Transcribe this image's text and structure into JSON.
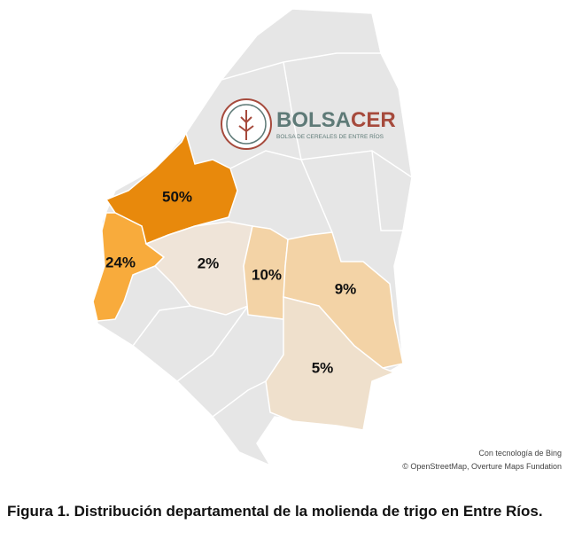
{
  "logo": {
    "name_part1": "BOLSA",
    "name_part2": "CER",
    "tagline": "BOLSA DE CEREALES DE ENTRE RÍOS"
  },
  "map": {
    "regions": [
      {
        "label": "50%",
        "color": "#e8890c"
      },
      {
        "label": "24%",
        "color": "#f8ab3c"
      },
      {
        "label": "2%",
        "color": "#efe4d8"
      },
      {
        "label": "10%",
        "color": "#f3d3a6"
      },
      {
        "label": "9%",
        "color": "#f3d3a6"
      },
      {
        "label": "5%",
        "color": "#efe0cc"
      }
    ],
    "attribution": [
      "Con tecnología de Bing",
      "© OpenStreetMap, Overture Maps Fundation"
    ]
  },
  "caption": "Figura 1. Distribución departamental de la molienda de trigo en Entre Ríos."
}
